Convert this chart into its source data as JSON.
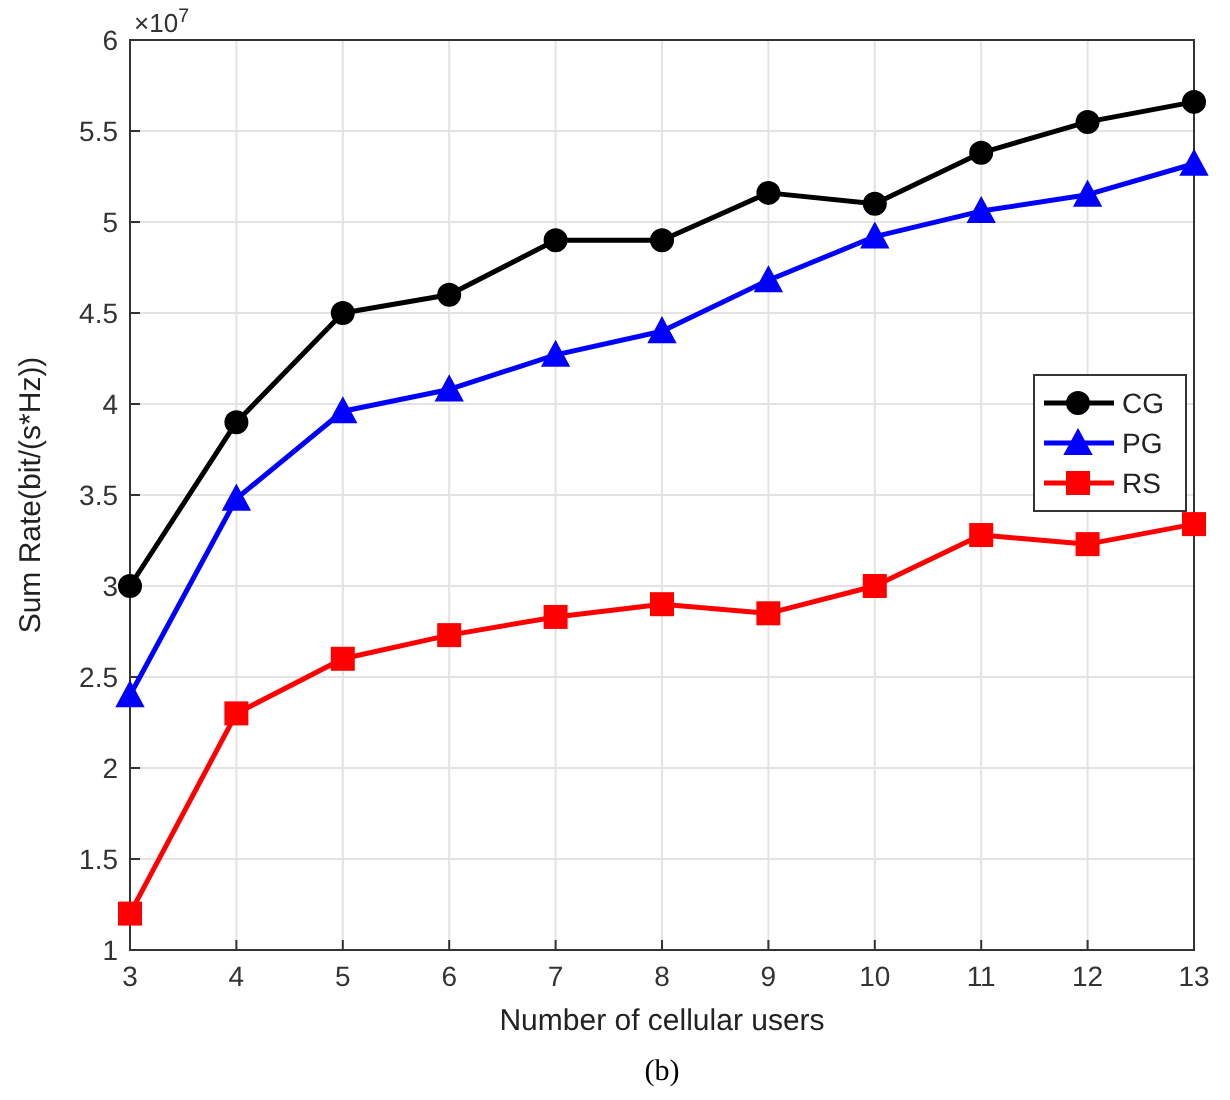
{
  "chart_data": {
    "type": "line",
    "xlabel": "Number of cellular users",
    "ylabel": "Sum Rate(bit/(s*Hz))",
    "x": [
      3,
      4,
      5,
      6,
      7,
      8,
      9,
      10,
      11,
      12,
      13
    ],
    "series": [
      {
        "name": "CG",
        "color": "#000000",
        "marker": "circle",
        "values": [
          3.0,
          3.9,
          4.5,
          4.6,
          4.9,
          4.9,
          5.16,
          5.1,
          5.38,
          5.55,
          5.66
        ]
      },
      {
        "name": "PG",
        "color": "#0000ff",
        "marker": "triangle",
        "values": [
          2.4,
          3.48,
          3.96,
          4.08,
          4.27,
          4.4,
          4.68,
          4.92,
          5.06,
          5.15,
          5.32
        ]
      },
      {
        "name": "RS",
        "color": "#ff0000",
        "marker": "square",
        "values": [
          1.2,
          2.3,
          2.6,
          2.73,
          2.83,
          2.9,
          2.85,
          3.0,
          3.28,
          3.23,
          3.34
        ]
      }
    ],
    "xlim": [
      3,
      13
    ],
    "xticks": [
      3,
      4,
      5,
      6,
      7,
      8,
      9,
      10,
      11,
      12,
      13
    ],
    "ylim": [
      1,
      6
    ],
    "yticks": [
      1,
      1.5,
      2,
      2.5,
      3,
      3.5,
      4,
      4.5,
      5,
      5.5,
      6
    ],
    "grid": true,
    "legend": "right",
    "line_style": "solid",
    "annotations": [
      "×10$^{7}$",
      "(b)"
    ]
  }
}
